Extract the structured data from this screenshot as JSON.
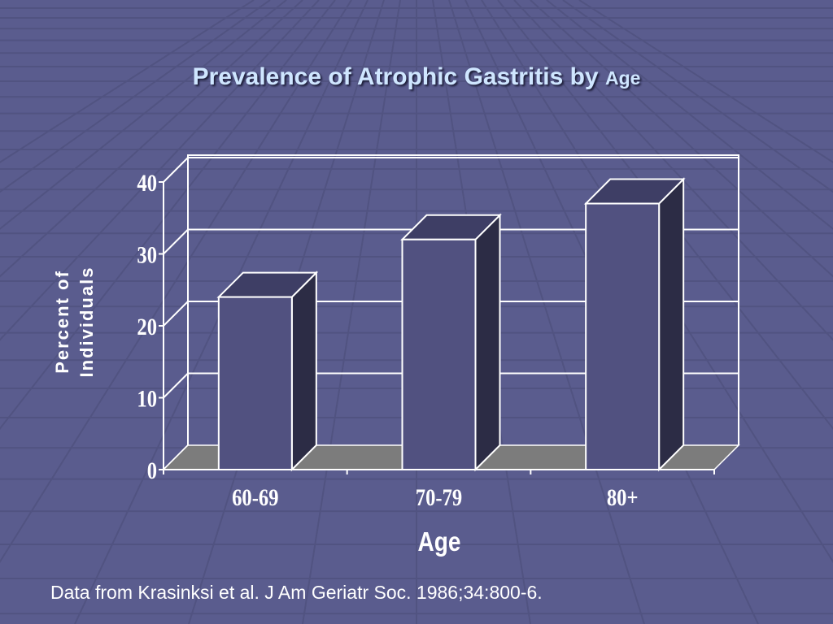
{
  "slide": {
    "title_main": "Prevalence of Atrophic Gastritis by",
    "title_tail": "Age",
    "footer": "Data from Krasinksi et al. J Am Geriatr Soc. 1986;34:800-6."
  },
  "colors": {
    "background": "#5a5c8e",
    "bar_front": "#515180",
    "bar_top": "#3e3e65",
    "bar_side": "#2c2c45",
    "floor": "#7c7c7c",
    "gridlines": "#ffffff"
  },
  "chart_data": {
    "type": "bar",
    "style": "3d",
    "categories": [
      "60-69",
      "70-79",
      "80+"
    ],
    "values": [
      24,
      32,
      37
    ],
    "ylabel_lines": [
      "Percent of",
      "Individuals"
    ],
    "xlabel": "Age",
    "ylim": [
      0,
      40
    ],
    "yticks": [
      "0",
      "10",
      "20",
      "30",
      "40"
    ],
    "grid": true,
    "legend": "none"
  }
}
